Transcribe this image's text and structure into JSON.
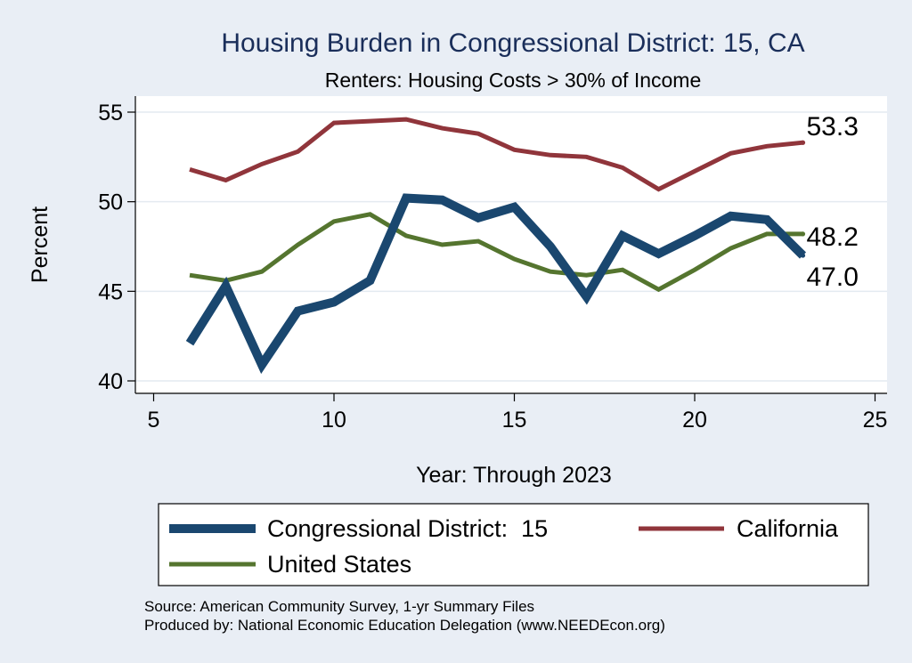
{
  "chart_data": {
    "type": "line",
    "title": "Housing Burden in Congressional District:  15, CA",
    "subtitle": "Renters: Housing Costs > 30% of Income",
    "xlabel": "Year: Through 2023",
    "ylabel": "Percent",
    "xlim": [
      5,
      25
    ],
    "ylim": [
      40,
      55
    ],
    "xticks": [
      5,
      10,
      15,
      20,
      25
    ],
    "yticks": [
      40,
      45,
      50,
      55
    ],
    "grid": true,
    "series": [
      {
        "name": "Congressional District:  15",
        "color": "#1a476f",
        "x": [
          6,
          7,
          8,
          9,
          10,
          11,
          12,
          13,
          14,
          15,
          16,
          17,
          18,
          19,
          20,
          21,
          22,
          23
        ],
        "values": [
          42.1,
          45.3,
          40.9,
          43.9,
          44.4,
          45.6,
          50.2,
          50.1,
          49.1,
          49.7,
          47.5,
          44.7,
          48.1,
          47.1,
          48.1,
          49.2,
          49.0,
          47.0
        ],
        "end_label": "47.0"
      },
      {
        "name": "California",
        "color": "#90353b",
        "x": [
          6,
          7,
          8,
          9,
          10,
          11,
          12,
          13,
          14,
          15,
          16,
          17,
          18,
          19,
          20,
          21,
          22,
          23
        ],
        "values": [
          51.8,
          51.2,
          52.1,
          52.8,
          54.4,
          54.5,
          54.6,
          54.1,
          53.8,
          52.9,
          52.6,
          52.5,
          51.9,
          50.7,
          51.7,
          52.7,
          53.1,
          53.3
        ],
        "end_label": "53.3"
      },
      {
        "name": "United States",
        "color": "#55752f",
        "x": [
          6,
          7,
          8,
          9,
          10,
          11,
          12,
          13,
          14,
          15,
          16,
          17,
          18,
          19,
          20,
          21,
          22,
          23
        ],
        "values": [
          45.9,
          45.6,
          46.1,
          47.6,
          48.9,
          49.3,
          48.1,
          47.6,
          47.8,
          46.8,
          46.1,
          45.9,
          46.2,
          45.1,
          46.2,
          47.4,
          48.2,
          48.2
        ],
        "end_label": "48.2"
      }
    ],
    "legend": {
      "position": "bottom",
      "entries": [
        "Congressional District:  15",
        "California",
        "United States"
      ]
    },
    "notes": [
      "Source: American Community Survey, 1-yr Summary Files",
      "Produced by: National Economic Education Delegation (www.NEEDEcon.org)"
    ]
  }
}
